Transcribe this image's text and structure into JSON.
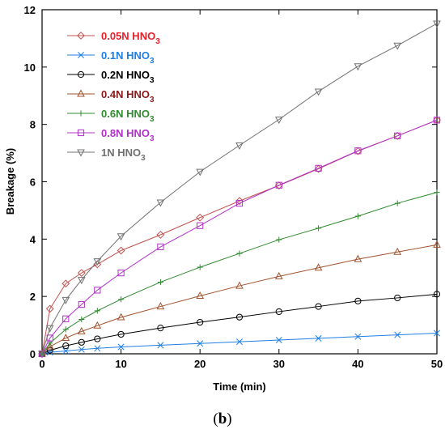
{
  "chart_data": {
    "type": "line",
    "xlabel": "Time (min)",
    "ylabel": "Breakage (%)",
    "xlim": [
      0,
      50
    ],
    "ylim": [
      0,
      12
    ],
    "xticks": [
      0,
      10,
      20,
      30,
      40,
      50
    ],
    "yticks": [
      0,
      2,
      4,
      6,
      8,
      10,
      12
    ],
    "grid": false,
    "legend_position": "top-left",
    "panel_label": "(b)",
    "x": [
      0,
      1,
      3,
      5,
      7,
      10,
      15,
      20,
      25,
      30,
      35,
      40,
      45,
      50
    ],
    "series": [
      {
        "name": "0.05N HNO3",
        "name_main": "0.05N HNO",
        "name_sub": "3",
        "color": "#e8202a",
        "line_color": "#c0504d",
        "marker": "diamond",
        "values": [
          0,
          1.57,
          2.45,
          2.82,
          3.12,
          3.6,
          4.15,
          4.75,
          5.33,
          5.87,
          6.45,
          7.07,
          7.6,
          8.15
        ]
      },
      {
        "name": "0.1N HNO3",
        "name_main": "0.1N HNO",
        "name_sub": "3",
        "color": "#1f7fe6",
        "line_color": "#1f7fe6",
        "marker": "x",
        "values": [
          0,
          0.05,
          0.1,
          0.15,
          0.19,
          0.24,
          0.3,
          0.36,
          0.42,
          0.48,
          0.54,
          0.6,
          0.66,
          0.72
        ]
      },
      {
        "name": "0.2N HNO3",
        "name_main": "0.2N HNO",
        "name_sub": "3",
        "color": "#000000",
        "line_color": "#000000",
        "marker": "circle",
        "values": [
          0,
          0.12,
          0.28,
          0.4,
          0.52,
          0.68,
          0.9,
          1.1,
          1.28,
          1.47,
          1.65,
          1.84,
          1.95,
          2.08
        ]
      },
      {
        "name": "0.4N HNO3",
        "name_main": "0.4N HNO",
        "name_sub": "3",
        "color": "#8b1a1a",
        "line_color": "#a0522d",
        "marker": "triangle-up",
        "values": [
          0,
          0.25,
          0.55,
          0.78,
          0.98,
          1.27,
          1.65,
          2.02,
          2.37,
          2.7,
          3.0,
          3.3,
          3.55,
          3.8
        ]
      },
      {
        "name": "0.6N HNO3",
        "name_main": "0.6N HNO",
        "name_sub": "3",
        "color": "#2e8b2e",
        "line_color": "#2e8b2e",
        "marker": "plus",
        "values": [
          0,
          0.37,
          0.85,
          1.2,
          1.5,
          1.9,
          2.5,
          3.02,
          3.5,
          3.98,
          4.38,
          4.8,
          5.25,
          5.63
        ]
      },
      {
        "name": "0.8N HNO3",
        "name_main": "0.8N HNO",
        "name_sub": "3",
        "color": "#b030c8",
        "line_color": "#b030c8",
        "marker": "square",
        "values": [
          0,
          0.55,
          1.22,
          1.72,
          2.22,
          2.82,
          3.73,
          4.47,
          5.25,
          5.88,
          6.47,
          7.08,
          7.6,
          8.15
        ]
      },
      {
        "name": "1N HNO3",
        "name_main": "1N HNO",
        "name_sub": "3",
        "color": "#707070",
        "line_color": "#707070",
        "marker": "triangle-down",
        "values": [
          0,
          0.9,
          1.88,
          2.58,
          3.23,
          4.1,
          5.28,
          6.35,
          7.27,
          8.17,
          9.15,
          10.03,
          10.75,
          11.52
        ]
      }
    ]
  }
}
